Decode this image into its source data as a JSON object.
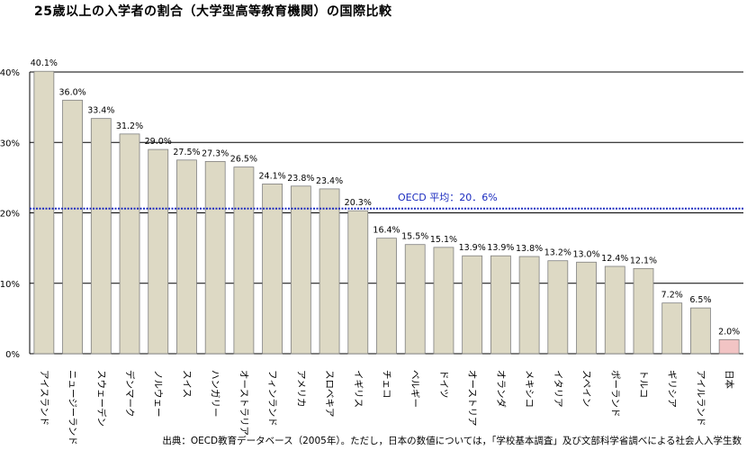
{
  "title": "25歳以上の入学者の割合（大学型高等教育機関）の国際比較",
  "source": "出典：OECD教育データベース（2005年）。ただし，日本の数値については，「学校基本調査」及び文部科学省調べによる社会人入学生数",
  "colors": {
    "bar": "#ddd9c4",
    "bar_highlight": "#f2c4c4",
    "bar_stroke": "#7f7f7f",
    "average_line": "#1a2bbf",
    "grid": "#000000"
  },
  "chart_data": {
    "type": "bar",
    "title": "25歳以上の入学者の割合（大学型高等教育機関）の国際比較",
    "xlabel": "",
    "ylabel": "",
    "ylim": [
      0,
      40
    ],
    "yticks": [
      0,
      10,
      20,
      30,
      40
    ],
    "ytick_labels": [
      "0%",
      "10%",
      "20%",
      "30%",
      "40%"
    ],
    "grid": true,
    "categories": [
      "アイスランド",
      "ニュージーランド",
      "スウェーデン",
      "デンマーク",
      "ノルウェー",
      "スイス",
      "ハンガリー",
      "オーストラリア",
      "フィンランド",
      "アメリカ",
      "スロベキア",
      "イギリス",
      "チェコ",
      "ベルギー",
      "ドイツ",
      "オーストリア",
      "オランダ",
      "メキシコ",
      "イタリア",
      "スペイン",
      "ポーランド",
      "トルコ",
      "ギリシア",
      "アイルランド",
      "日本"
    ],
    "values": [
      40.1,
      36.0,
      33.4,
      31.2,
      29.0,
      27.5,
      27.3,
      26.5,
      24.1,
      23.8,
      23.4,
      20.3,
      16.4,
      15.5,
      15.1,
      13.9,
      13.9,
      13.8,
      13.2,
      13.0,
      12.4,
      12.1,
      7.2,
      6.5,
      2.0
    ],
    "data_labels": [
      "40.1%",
      "36.0%",
      "33.4%",
      "31.2%",
      "29.0%",
      "27.5%",
      "27.3%",
      "26.5%",
      "24.1%",
      "23.8%",
      "23.4%",
      "20.3%",
      "16.4%",
      "15.5%",
      "15.1%",
      "13.9%",
      "13.9%",
      "13.8%",
      "13.2%",
      "13.0%",
      "12.4%",
      "12.1%",
      "7.2%",
      "6.5%",
      "2.0%"
    ],
    "highlight_category": "日本",
    "reference_line": {
      "value": 20.6,
      "label": "OECD 平均：20．6%"
    }
  }
}
